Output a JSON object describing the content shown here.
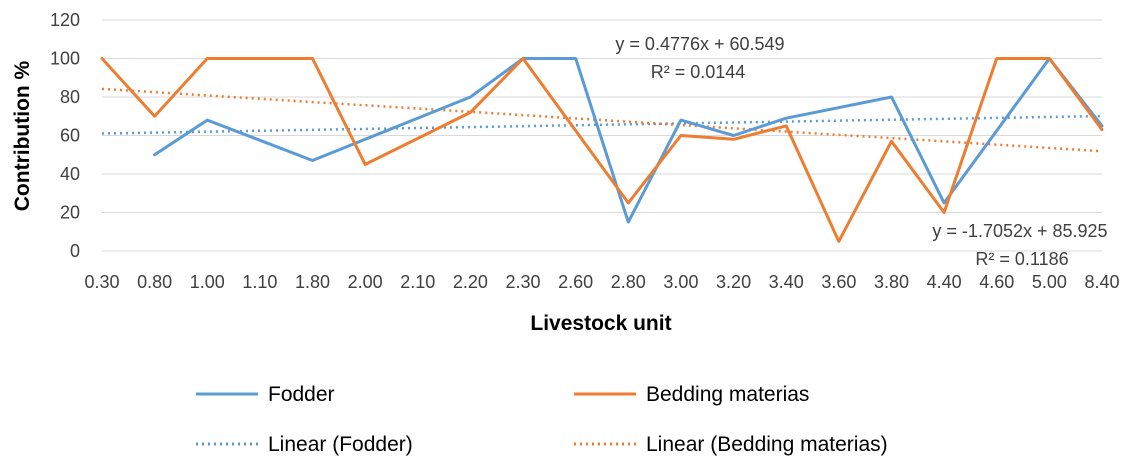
{
  "chart_data": {
    "type": "line",
    "title": "",
    "xlabel": "Livestock unit",
    "ylabel": "Contribution %",
    "ylim": [
      0,
      120
    ],
    "yticks": [
      "0",
      "20",
      "40",
      "60",
      "80",
      "100",
      "120"
    ],
    "categories": [
      "0.30",
      "0.80",
      "1.00",
      "1.10",
      "1.80",
      "2.00",
      "2.10",
      "2.20",
      "2.30",
      "2.60",
      "2.80",
      "3.00",
      "3.20",
      "3.40",
      "3.60",
      "3.80",
      "4.40",
      "4.60",
      "5.00",
      "8.40"
    ],
    "grid": "horizontal",
    "legend_position": "bottom",
    "series": [
      {
        "name": "Fodder",
        "color": "#5B9BD5",
        "style": "solid",
        "values": [
          null,
          50,
          68,
          null,
          47,
          null,
          null,
          80,
          100,
          100,
          15,
          68,
          60,
          69,
          null,
          80,
          25,
          null,
          100,
          65
        ]
      },
      {
        "name": "Bedding materias",
        "color": "#ED7D31",
        "style": "solid",
        "values": [
          100,
          70,
          100,
          100,
          100,
          45,
          null,
          72,
          100,
          null,
          25,
          60,
          58,
          65,
          5,
          57,
          20,
          100,
          100,
          63
        ]
      }
    ],
    "trendlines": [
      {
        "name": "Linear (Fodder)",
        "color": "#5B9BD5",
        "style": "dotted",
        "slope": 0.4776,
        "intercept": 60.549,
        "equation": "y = 0.4776x + 60.549",
        "r2": "R² = 0.0144"
      },
      {
        "name": "Linear (Bedding materias)",
        "color": "#ED7D31",
        "style": "dotted",
        "slope": -1.7052,
        "intercept": 85.925,
        "equation": "y = -1.7052x + 85.925",
        "r2": "R² = 0.1186"
      }
    ]
  }
}
